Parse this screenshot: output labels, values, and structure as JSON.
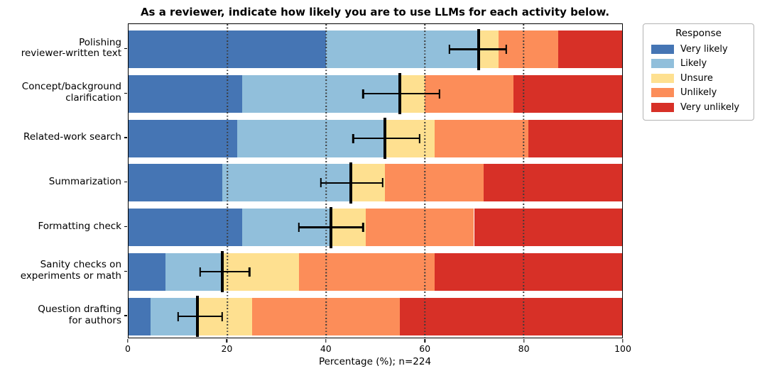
{
  "title": "As a reviewer, indicate how likely you are to use LLMs for each activity below.",
  "x_axis": {
    "label": "Percentage (%); n=224",
    "ticks": [
      0,
      20,
      40,
      60,
      80,
      100
    ],
    "grid_ticks": [
      20,
      40,
      60,
      80
    ]
  },
  "legend": {
    "title": "Response",
    "items": [
      {
        "label": "Very likely",
        "color": "#4575b4"
      },
      {
        "label": "Likely",
        "color": "#91bfdb"
      },
      {
        "label": "Unsure",
        "color": "#fee090"
      },
      {
        "label": "Unlikely",
        "color": "#fc8d59"
      },
      {
        "label": "Very unlikely",
        "color": "#d73027"
      }
    ]
  },
  "chart_data": {
    "type": "bar",
    "orientation": "horizontal",
    "stacked": true,
    "xlim": [
      0,
      100
    ],
    "grid": "vertical dotted lines at 20/40/60/80, drawn above bars",
    "legend_position": "outside upper right",
    "categories": [
      "Polishing\nreviewer-written text",
      "Concept/background\nclarification",
      "Related-work search",
      "Summarization",
      "Formatting check",
      "Sanity checks on\nexperiments or math",
      "Question drafting\nfor authors"
    ],
    "series": [
      {
        "name": "Very likely",
        "color": "#4575b4",
        "values": [
          40,
          23,
          22,
          19,
          23,
          7.5,
          4.5
        ]
      },
      {
        "name": "Likely",
        "color": "#91bfdb",
        "values": [
          31,
          32,
          30,
          26,
          18,
          11.5,
          9.5
        ]
      },
      {
        "name": "Unsure",
        "color": "#fee090",
        "values": [
          4,
          5,
          10,
          7,
          7,
          15.5,
          11
        ]
      },
      {
        "name": "Unlikely",
        "color": "#fc8d59",
        "values": [
          12,
          18,
          19,
          20,
          22,
          27.5,
          30
        ]
      },
      {
        "name": "Very unlikely",
        "color": "#d73027",
        "values": [
          13,
          22,
          19,
          28,
          30,
          38,
          45
        ]
      }
    ],
    "error_bars": {
      "description": "black vertical marker at cumulative Very likely + Likely, with horizontal CI whiskers",
      "centers": [
        71,
        55,
        52,
        45,
        41,
        19,
        14
      ],
      "low": [
        65,
        47.5,
        45.5,
        39,
        34.5,
        14.5,
        10
      ],
      "high": [
        76.5,
        63,
        59,
        51.5,
        47.5,
        24.5,
        19
      ]
    }
  }
}
